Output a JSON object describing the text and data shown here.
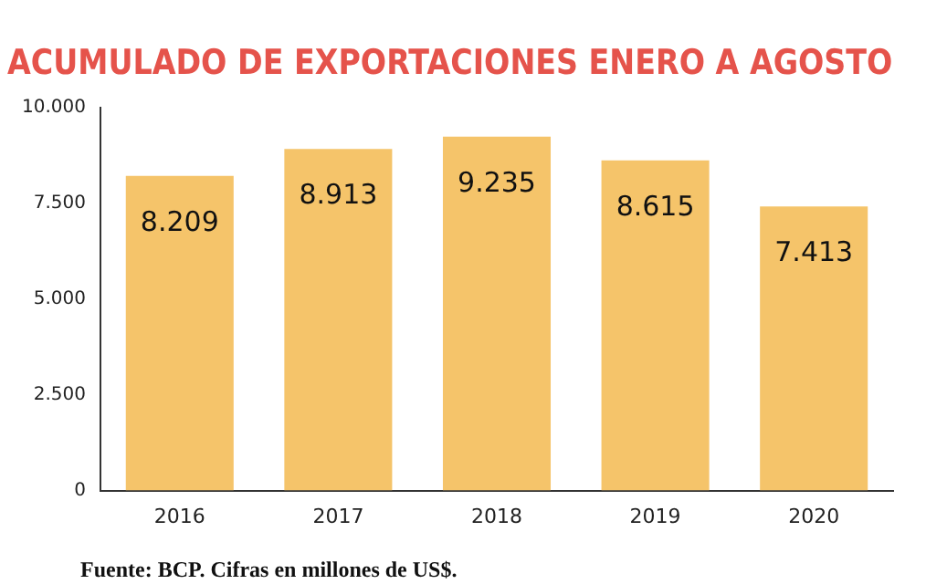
{
  "chart_data": {
    "type": "bar",
    "title": "ACUMULADO DE EXPORTACIONES ENERO A AGOSTO",
    "categories": [
      "2016",
      "2017",
      "2018",
      "2019",
      "2020"
    ],
    "values": [
      8209,
      8913,
      9235,
      8615,
      7413
    ],
    "value_labels": [
      "8.209",
      "8.913",
      "9.235",
      "8.615",
      "7.413"
    ],
    "color": "#f5c46a",
    "ylim": [
      0,
      10000
    ],
    "yticks": [
      {
        "value": 0,
        "label": "0"
      },
      {
        "value": 2500,
        "label": "2.500"
      },
      {
        "value": 5000,
        "label": "5.000"
      },
      {
        "value": 7500,
        "label": "7.500"
      },
      {
        "value": 10000,
        "label": "10.000"
      }
    ],
    "grid": false,
    "annotations": [
      "Fuente: BCP. Cifras en millones de US$."
    ]
  }
}
